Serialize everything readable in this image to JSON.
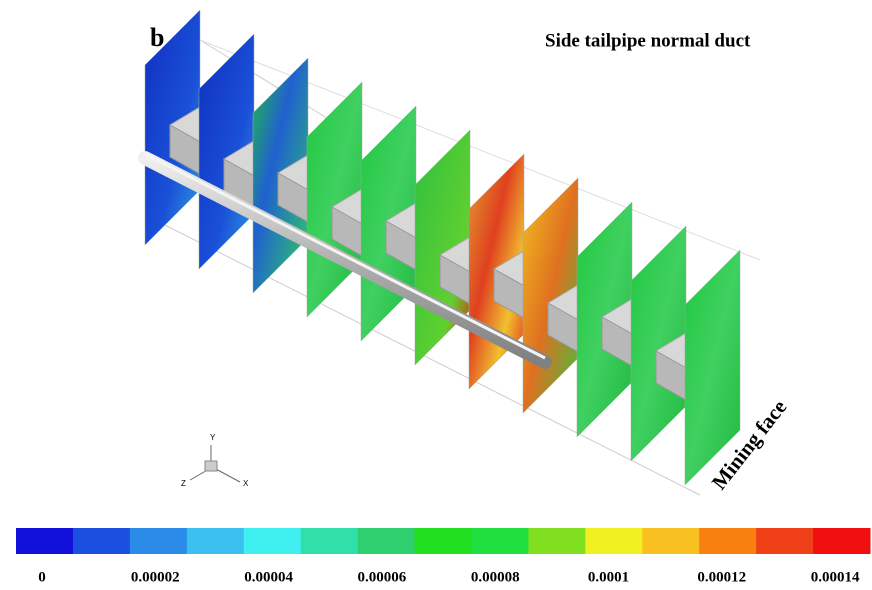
{
  "figure": {
    "panel_label": "b",
    "title": "Side tailpipe normal duct",
    "annotation": "Mining face",
    "axes_triad": {
      "y": "Y",
      "z": "Z",
      "x": "X"
    },
    "colorbar": {
      "colors": [
        "#1010d8",
        "#1a4fe0",
        "#2a8ce8",
        "#3cc0f0",
        "#40f0f0",
        "#30e0a8",
        "#30d070",
        "#20e020",
        "#20e040",
        "#80e020",
        "#f0f020",
        "#f8c020",
        "#f88010",
        "#f04018",
        "#f01010"
      ],
      "labels": [
        "0",
        "0.00002",
        "0.00004",
        "0.00006",
        "0.00008",
        "0.0001",
        "0.00012",
        "0.00014"
      ]
    }
  }
}
